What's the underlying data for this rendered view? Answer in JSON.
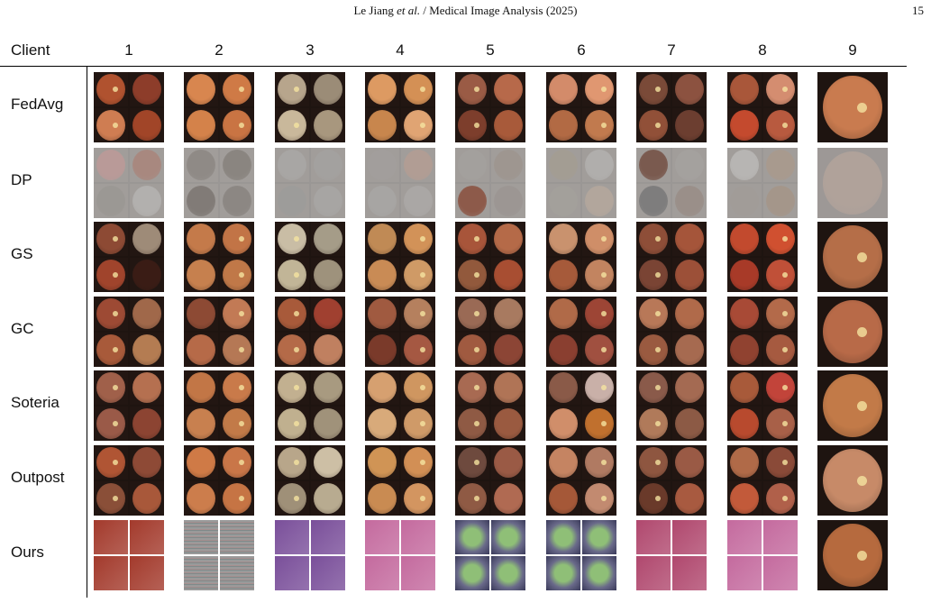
{
  "running_head": {
    "author": "Le Jiang ",
    "etal": "et al.",
    "journal": " / Medical Image Analysis (2025)"
  },
  "page_number": "15",
  "header": {
    "label": "Client",
    "clients": [
      "1",
      "2",
      "3",
      "4",
      "5",
      "6",
      "7",
      "8",
      "9"
    ]
  },
  "methods": [
    "FedAvg",
    "DP",
    "GS",
    "GC",
    "Soteria",
    "Outpost",
    "Ours"
  ],
  "colors": {
    "fundus": "#c8683a",
    "dp_haze": "#a7a3a0",
    "ours_red": "#a33a2c",
    "ours_gray": "#8f8f8f",
    "ours_purple": "#7a4f9a",
    "ours_pink": "#c46a9e",
    "ours_green": "#8fbf77"
  }
}
